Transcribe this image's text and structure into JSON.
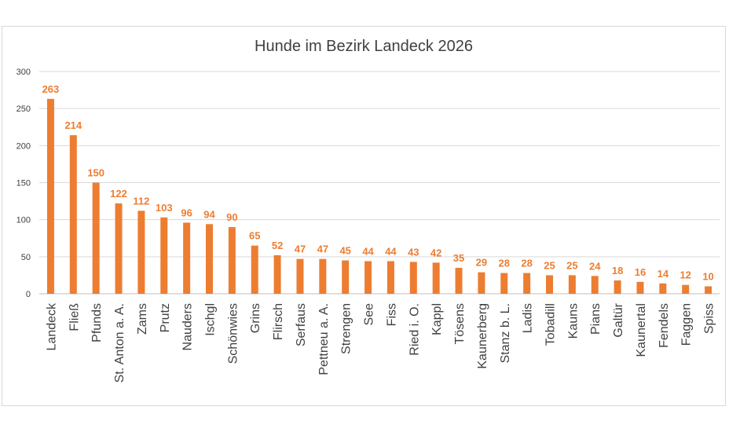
{
  "chart_data": {
    "type": "bar",
    "title": "Hunde im Bezirk Landeck 2026",
    "xlabel": "",
    "ylabel": "",
    "ylim": [
      0,
      300
    ],
    "yticks": [
      0,
      50,
      100,
      150,
      200,
      250,
      300
    ],
    "grid": true,
    "bar_color": "#ed7d31",
    "categories": [
      "Landeck",
      "Fließ",
      "Pfunds",
      "St. Anton a. A.",
      "Zams",
      "Prutz",
      "Nauders",
      "Ischgl",
      "Schönwies",
      "Grins",
      "Flirsch",
      "Serfaus",
      "Pettneu a. A.",
      "Strengen",
      "See",
      "Fiss",
      "Ried i. O.",
      "Kappl",
      "Tösens",
      "Kaunerberg",
      "Stanz b. L.",
      "Ladis",
      "Tobadill",
      "Kauns",
      "Pians",
      "Galtür",
      "Kaunertal",
      "Fendels",
      "Faggen",
      "Spiss"
    ],
    "values": [
      263,
      214,
      150,
      122,
      112,
      103,
      96,
      94,
      90,
      65,
      52,
      47,
      47,
      45,
      44,
      44,
      43,
      42,
      35,
      29,
      28,
      28,
      25,
      25,
      24,
      18,
      16,
      14,
      12,
      10
    ]
  }
}
